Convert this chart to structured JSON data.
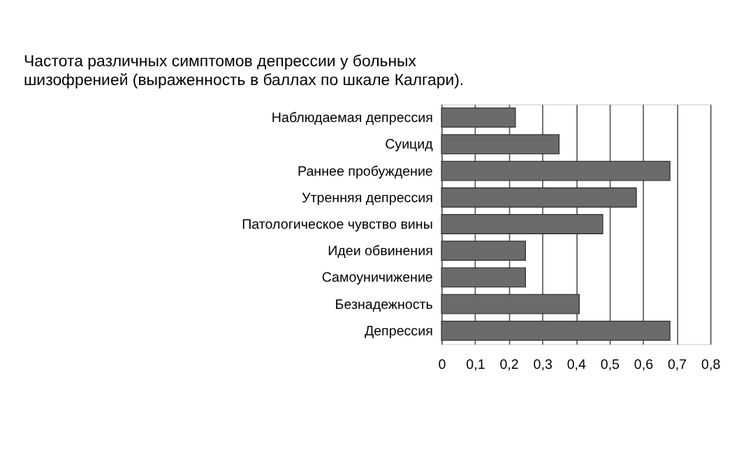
{
  "chart_data": {
    "type": "bar",
    "orientation": "horizontal",
    "title": [
      "Частота различных симптомов депрессии у больных",
      "шизофренией (выраженность в баллах по шкале Калгари)."
    ],
    "categories": [
      "Наблюдаемая депрессия",
      "Суицид",
      "Раннее пробуждение",
      "Утренняя депрессия",
      "Патологическое чувство вины",
      "Идеи обвинения",
      "Самоуничижение",
      "Безнадежность",
      "Депрессия"
    ],
    "values": [
      0.22,
      0.35,
      0.68,
      0.58,
      0.48,
      0.25,
      0.25,
      0.41,
      0.68
    ],
    "color": "#6b6b6b",
    "xlim": [
      0,
      0.8
    ],
    "xticks": [
      0,
      {
        "value": 0.1,
        "label": "0,1"
      },
      {
        "value": 0.2,
        "label": "0,2"
      },
      {
        "value": 0.3,
        "label": "0,3"
      },
      {
        "value": 0.4,
        "label": "0,4"
      },
      {
        "value": 0.5,
        "label": "0,5"
      },
      {
        "value": 0.6,
        "label": "0,6"
      },
      {
        "value": 0.7,
        "label": "0,7"
      },
      {
        "value": 0.8,
        "label": "0,8"
      }
    ],
    "grid": "x"
  }
}
